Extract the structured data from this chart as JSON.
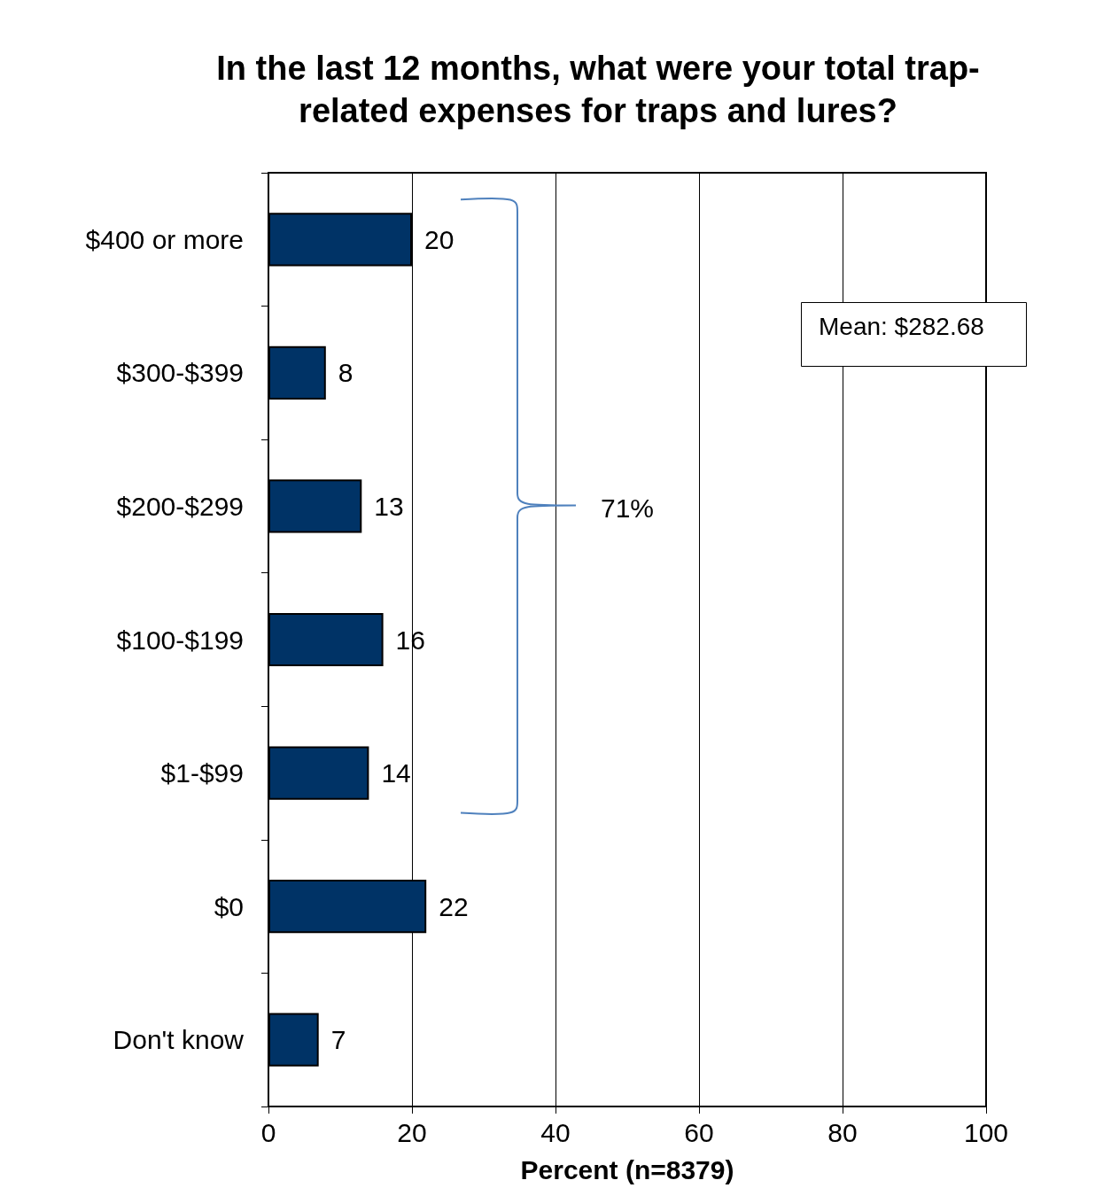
{
  "chart_data": {
    "type": "bar",
    "orientation": "horizontal",
    "title": "In the last 12 months, what were your total trap-\nrelated expenses for traps and lures?",
    "xlabel": "Percent (n=8379)",
    "categories": [
      "$400 or more",
      "$300-$399",
      "$200-$299",
      "$100-$199",
      "$1-$99",
      "$0",
      "Don't know"
    ],
    "values": [
      20,
      8,
      13,
      16,
      14,
      22,
      7
    ],
    "color": "#003366",
    "xlim": [
      0,
      100
    ],
    "xticks": [
      0,
      20,
      40,
      60,
      80,
      100
    ],
    "grid": "x",
    "data_labels": true,
    "annotations": [
      "Mean: $282.68",
      "71%"
    ]
  }
}
